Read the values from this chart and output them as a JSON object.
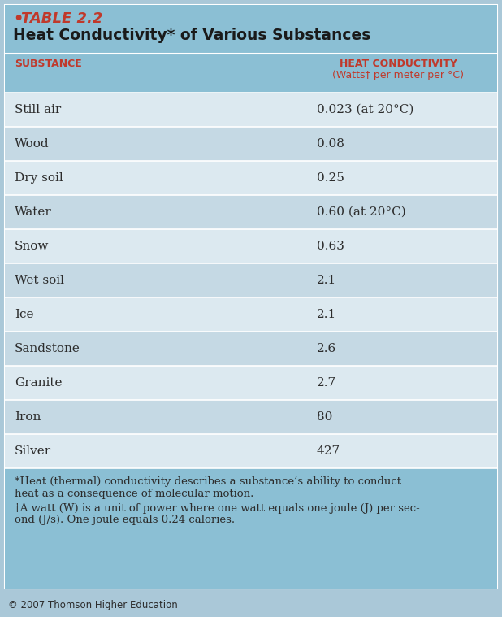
{
  "table_number": "TABLE 2.2",
  "title": "Heat Conductivity* of Various Substances",
  "col1_header": "SUBSTANCE",
  "col2_header_line1": "HEAT CONDUCTIVITY",
  "col2_header_line2": "(Watts† per meter per °C)",
  "rows": [
    [
      "Still air",
      "0.023 (at 20°C)"
    ],
    [
      "Wood",
      "0.08"
    ],
    [
      "Dry soil",
      "0.25"
    ],
    [
      "Water",
      "0.60 (at 20°C)"
    ],
    [
      "Snow",
      "0.63"
    ],
    [
      "Wet soil",
      "2.1"
    ],
    [
      "Ice",
      "2.1"
    ],
    [
      "Sandstone",
      "2.6"
    ],
    [
      "Granite",
      "2.7"
    ],
    [
      "Iron",
      "80"
    ],
    [
      "Silver",
      "427"
    ]
  ],
  "fn_line1": "*Heat (thermal) conductivity describes a substance’s ability to conduct",
  "fn_line2": "heat as a consequence of molecular motion.",
  "fn_line3": "†A watt (W) is a unit of power where one watt equals one joule (J) per sec-",
  "fn_line4": "ond (J/s). One joule equals 0.24 calories.",
  "copyright": "© 2007 Thomson Higher Education",
  "bg_dark": "#8bbfd4",
  "bg_row_alt1": "#dce9f0",
  "bg_row_alt2": "#c5d9e4",
  "header_color": "#c0392b",
  "title_color": "#1a1a1a",
  "bullet_color": "#c0392b",
  "text_color": "#2c2c2c",
  "outer_bg": "#aac8d8"
}
